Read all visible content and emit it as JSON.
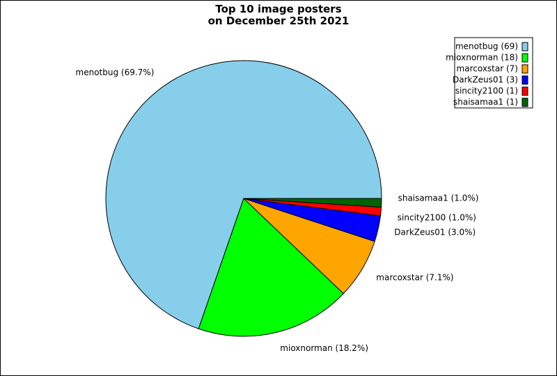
{
  "chart_data": {
    "type": "pie",
    "title": [
      "Top 10 image posters",
      "on December 25th 2021"
    ],
    "slices": [
      {
        "name": "menotbug",
        "count": 69,
        "percent": 69.7,
        "color": "#87CEEB",
        "label": "menotbug (69.7%)",
        "legend": "menotbug (69)"
      },
      {
        "name": "mioxnorman",
        "count": 18,
        "percent": 18.2,
        "color": "#00FF00",
        "label": "mioxnorman (18.2%)",
        "legend": "mioxnorman (18)"
      },
      {
        "name": "marcoxstar",
        "count": 7,
        "percent": 7.1,
        "color": "#FFA500",
        "label": "marcoxstar (7.1%)",
        "legend": "marcoxstar (7)"
      },
      {
        "name": "DarkZeus01",
        "count": 3,
        "percent": 3.0,
        "color": "#0000FF",
        "label": "DarkZeus01 (3.0%)",
        "legend": "DarkZeus01 (3)"
      },
      {
        "name": "sincity2100",
        "count": 1,
        "percent": 1.0,
        "color": "#FF0000",
        "label": "sincity2100 (1.0%)",
        "legend": "sincity2100 (1)"
      },
      {
        "name": "shaisamaa1",
        "count": 1,
        "percent": 1.0,
        "color": "#006400",
        "label": "shaisamaa1 (1.0%)",
        "legend": "shaisamaa1 (1)"
      }
    ],
    "legend_position": "top-right",
    "start_angle": "3 o'clock",
    "direction": "counterclockwise"
  }
}
